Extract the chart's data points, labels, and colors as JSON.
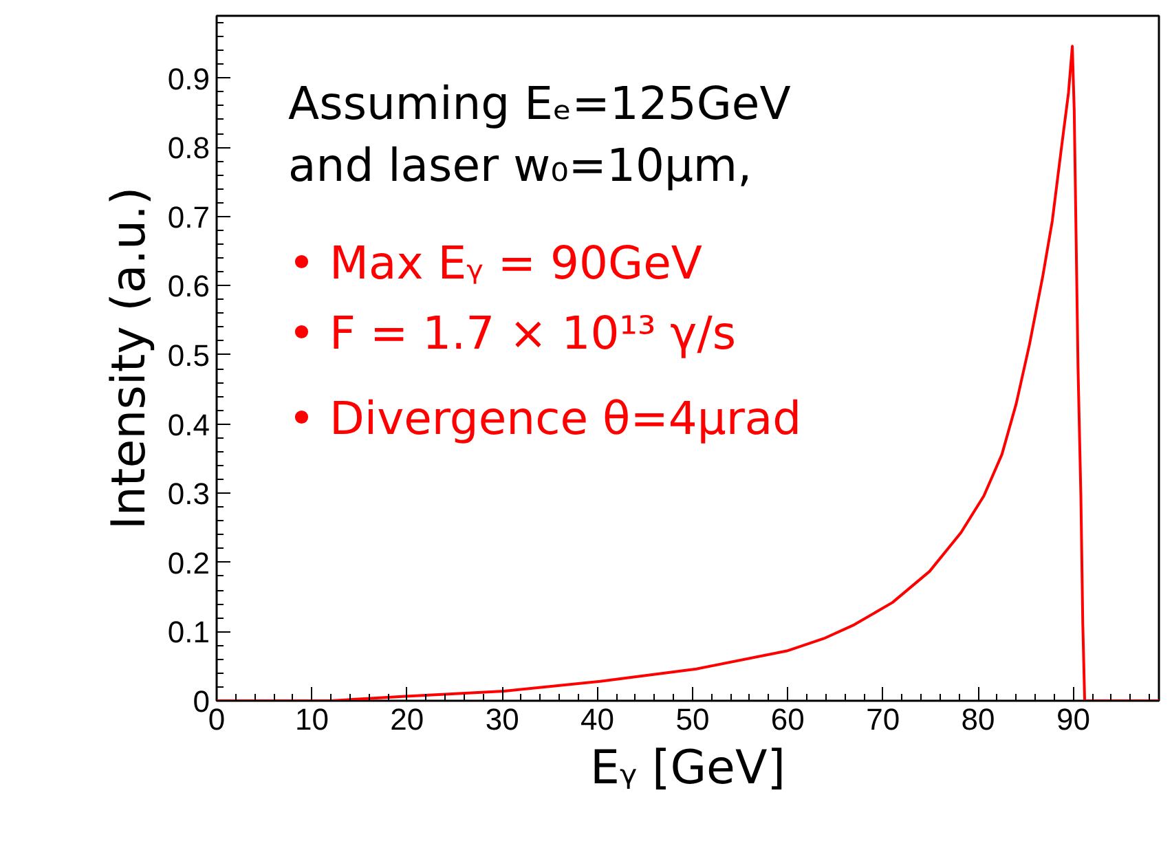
{
  "chart_data": {
    "type": "line",
    "xlabel": "Eᵧ [GeV]",
    "ylabel": "Intensity (a.u.)",
    "xlim": [
      0,
      99
    ],
    "ylim": [
      0,
      0.99
    ],
    "xticks": [
      0,
      10,
      20,
      30,
      40,
      50,
      60,
      70,
      80,
      90
    ],
    "yticks": [
      0,
      0.1,
      0.2,
      0.3,
      0.4,
      0.5,
      0.6,
      0.7,
      0.8,
      0.9
    ],
    "grid": false,
    "marker": "none",
    "line_style": "solid",
    "annotations": [
      "Assuming Eₑ=125GeV",
      "and laser w₀=10μm,",
      "•   Max Eᵧ = 90GeV",
      "•   F = 1.7 × 10¹³ γ/s",
      "•   Divergence θ=4μrad"
    ],
    "series": [
      {
        "color": "#ff0000",
        "x": [
          0,
          12,
          19.2,
          30.2,
          40.3,
          50.4,
          59.9,
          63.8,
          67,
          71,
          74.9,
          78.2,
          80.6,
          82.5,
          84,
          85.4,
          86.8,
          87.8,
          88.7,
          89.5,
          89.9,
          90.1,
          90.3,
          90.5,
          90.8,
          91,
          91.2,
          99
        ],
        "values": [
          0,
          0,
          0.006,
          0.014,
          0.028,
          0.046,
          0.072,
          0.09,
          0.11,
          0.142,
          0.187,
          0.243,
          0.296,
          0.356,
          0.429,
          0.515,
          0.614,
          0.694,
          0.793,
          0.879,
          0.946,
          0.853,
          0.668,
          0.481,
          0.296,
          0.111,
          0,
          0
        ]
      }
    ]
  }
}
